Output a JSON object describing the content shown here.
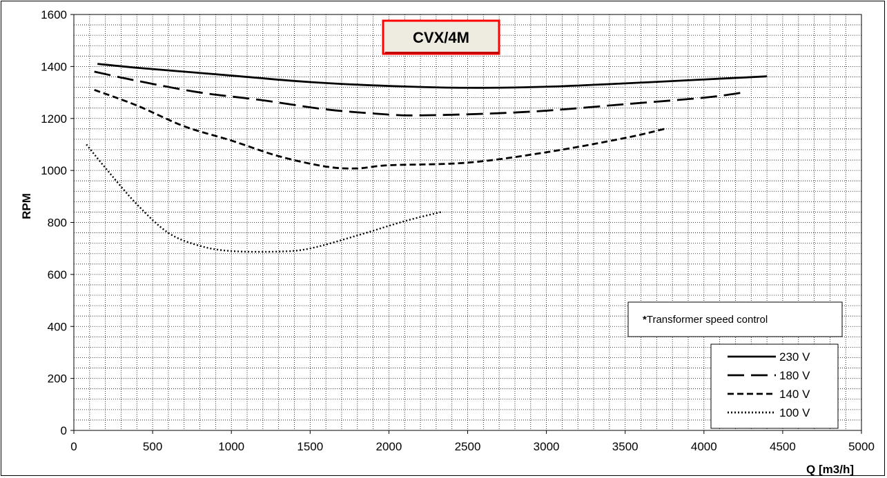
{
  "chart_data": {
    "type": "line",
    "title": "CVX/4M",
    "xlabel": "Q [m3/h]",
    "ylabel": "RPM",
    "xlim": [
      0,
      5000
    ],
    "ylim": [
      0,
      1600
    ],
    "x_ticks": [
      0,
      500,
      1000,
      1500,
      2000,
      2500,
      3000,
      3500,
      4000,
      4500,
      5000
    ],
    "y_ticks": [
      0,
      200,
      400,
      600,
      800,
      1000,
      1200,
      1400,
      1600
    ],
    "grid": true,
    "legend_position": "bottom-right",
    "annotation_prefix": "*",
    "annotation": "Transformer speed control",
    "series": [
      {
        "name": "230 V",
        "dash": "solid",
        "x": [
          150,
          400,
          700,
          1000,
          1500,
          2000,
          2500,
          3000,
          3500,
          4000,
          4400
        ],
        "y": [
          1410,
          1395,
          1380,
          1365,
          1340,
          1325,
          1318,
          1322,
          1335,
          1350,
          1362
        ]
      },
      {
        "name": "180 V",
        "dash": "long-dash",
        "x": [
          130,
          400,
          800,
          1200,
          1600,
          2000,
          2200,
          2600,
          3000,
          3500,
          4000,
          4250
        ],
        "y": [
          1380,
          1345,
          1300,
          1270,
          1235,
          1215,
          1212,
          1218,
          1230,
          1255,
          1280,
          1300
        ]
      },
      {
        "name": "140 V",
        "dash": "short-dash",
        "x": [
          130,
          400,
          700,
          1000,
          1300,
          1600,
          1800,
          2000,
          2500,
          3000,
          3500,
          3750
        ],
        "y": [
          1310,
          1250,
          1170,
          1115,
          1055,
          1015,
          1008,
          1020,
          1030,
          1070,
          1125,
          1160
        ]
      },
      {
        "name": "100 V",
        "dash": "dotted",
        "x": [
          80,
          200,
          400,
          600,
          800,
          1000,
          1300,
          1500,
          1800,
          2100,
          2330
        ],
        "y": [
          1100,
          1010,
          870,
          760,
          710,
          690,
          688,
          700,
          750,
          805,
          840
        ]
      }
    ]
  }
}
